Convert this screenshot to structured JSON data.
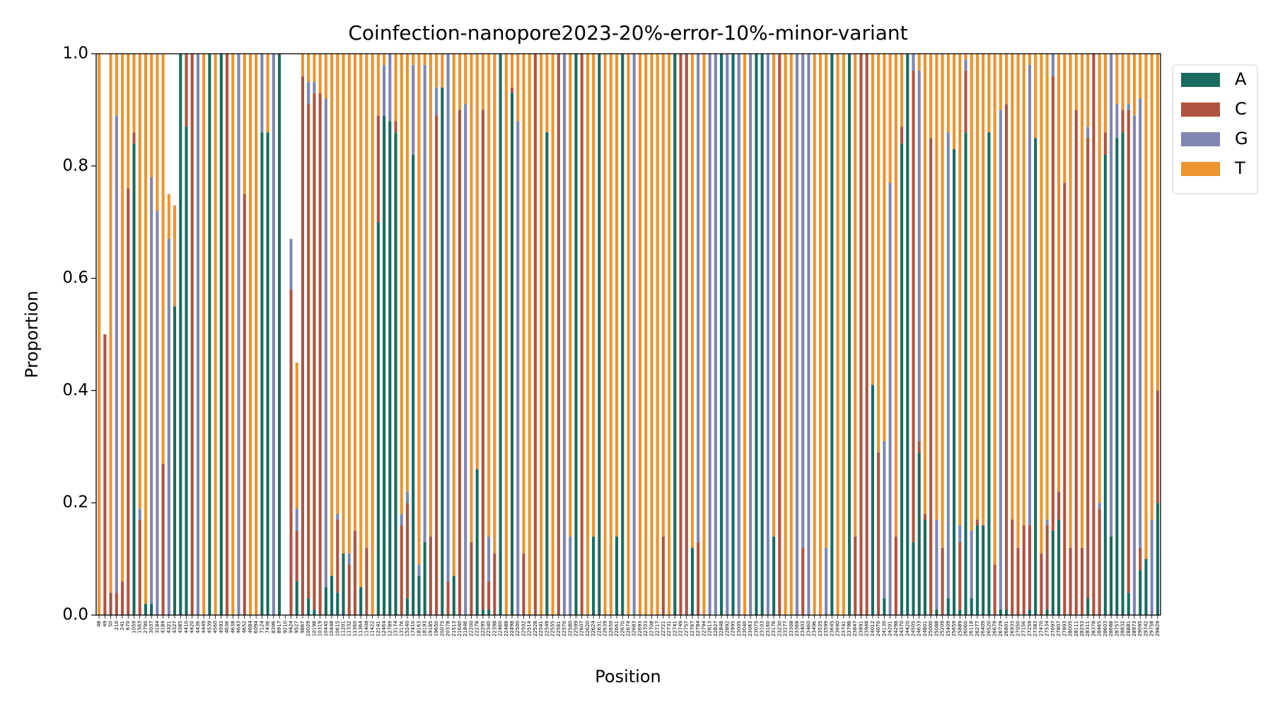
{
  "chart_data": {
    "type": "stacked_bar",
    "title": "Coinfection-nanopore2023-20%-error-10%-minor-variant",
    "x_label": "Position",
    "y_label": "Proportion",
    "ylim": [
      0,
      1
    ],
    "yticks": [
      {
        "value": 0,
        "label": "0.0"
      },
      {
        "value": 0.2,
        "label": "0.2"
      },
      {
        "value": 0.4,
        "label": "0.4"
      },
      {
        "value": 0.6,
        "label": "0.6"
      },
      {
        "value": 0.8,
        "label": "0.8"
      },
      {
        "value": 1,
        "label": "1.0"
      }
    ],
    "legend": "upper right outside",
    "categories": [
      48,
      49,
      50,
      210,
      241,
      670,
      1059,
      1563,
      2790,
      3037,
      3184,
      4184,
      4321,
      4327,
      4385,
      4410,
      4420,
      4436,
      4449,
      4539,
      4560,
      4593,
      4636,
      4638,
      4643,
      4652,
      4684,
      6094,
      7124,
      7436,
      8396,
      8917,
      9210,
      9424,
      9527,
      9867,
      10029,
      10198,
      10319,
      10445,
      10448,
      10615,
      11201,
      11332,
      11360,
      11364,
      11408,
      11422,
      12141,
      12464,
      12789,
      13174,
      13176,
      15240,
      17410,
      18163,
      18193,
      19185,
      19650,
      20075,
      20378,
      21513,
      21640,
      21846,
      22200,
      22278,
      22295,
      22340,
      22398,
      22460,
      22488,
      22498,
      22500,
      22502,
      22514,
      22528,
      22541,
      22549,
      22555,
      22561,
      22570,
      22580,
      22599,
      22607,
      22620,
      22624,
      22631,
      22639,
      22650,
      22661,
      22670,
      22674,
      22683,
      22693,
      22703,
      22708,
      22717,
      22721,
      22731,
      22741,
      22749,
      22757,
      22767,
      22784,
      22794,
      22813,
      22827,
      22848,
      22892,
      22995,
      23005,
      23040,
      23063,
      23075,
      23103,
      23160,
      23176,
      23230,
      23277,
      23308,
      23368,
      23403,
      23460,
      23496,
      23535,
      23599,
      23645,
      23690,
      23741,
      23798,
      23847,
      23891,
      23948,
      24012,
      24070,
      24130,
      24201,
      24298,
      24370,
      24420,
      24505,
      24633,
      24801,
      25000,
      25088,
      25209,
      25409,
      25659,
      25889,
      26060,
      26118,
      26277,
      26409,
      26520,
      26679,
      26729,
      26801,
      26933,
      27050,
      27156,
      27259,
      27383,
      27470,
      27534,
      27697,
      27807,
      27893,
      28005,
      28111,
      28253,
      28311,
      28378,
      28465,
      28603,
      28688,
      28757,
      28832,
      28881,
      28973,
      29095,
      29742,
      29758,
      29829
    ],
    "series": [
      {
        "name": "A",
        "color": "#1a6b5f",
        "values": [
          0,
          0,
          0,
          0,
          0,
          0,
          0.84,
          0,
          0.02,
          0.02,
          0,
          0,
          0,
          0.55,
          1,
          0.87,
          0,
          0,
          0,
          1,
          0,
          1,
          0,
          0,
          0,
          0,
          0,
          0,
          0.86,
          0.86,
          0,
          1,
          0,
          0,
          0.06,
          0,
          0.03,
          0.01,
          0,
          0.05,
          0.07,
          0.04,
          0.11,
          0,
          0,
          0.05,
          0,
          0,
          0.7,
          0.89,
          0.88,
          0.86,
          0,
          0.03,
          0.82,
          0.07,
          0.13,
          0,
          0,
          0.94,
          0,
          0.07,
          0,
          0,
          0,
          0.26,
          0.01,
          0.01,
          0,
          1,
          0,
          0.93,
          0,
          0,
          0,
          0,
          0,
          0.86,
          0,
          0,
          0,
          0,
          1,
          0,
          0,
          0.14,
          1,
          0,
          0,
          0.14,
          1,
          0,
          0,
          0,
          0,
          0,
          0,
          0,
          0,
          1,
          0,
          0,
          0.12,
          0,
          0,
          0,
          0,
          1,
          0,
          1,
          0,
          0,
          0,
          1,
          1,
          0,
          0.14,
          0,
          0,
          0,
          0,
          0,
          0,
          0,
          0,
          0,
          1,
          0,
          0,
          1,
          0,
          0,
          0,
          0.41,
          0,
          0.03,
          0,
          0,
          0.84,
          1,
          0.13,
          0.29,
          0.17,
          0,
          0.01,
          0,
          0.03,
          0.83,
          0.01,
          0.86,
          0.03,
          0.16,
          0.16,
          0.86,
          0,
          0.01,
          0.01,
          0,
          0,
          0,
          0.01,
          0.85,
          0,
          0.01,
          0.15,
          0.17,
          0,
          0,
          0,
          0,
          0.03,
          0,
          0,
          0.82,
          0.14,
          0.85,
          0.86,
          0.04,
          0,
          0.08,
          0.1,
          0,
          0.2
        ]
      },
      {
        "name": "C",
        "color": "#b05340",
        "values": [
          0,
          0.5,
          0.04,
          0.04,
          0.06,
          0.76,
          0.02,
          0.17,
          0,
          0,
          0,
          0.27,
          0,
          0,
          0,
          0.13,
          1,
          0,
          0,
          0,
          0,
          0,
          1,
          0,
          0,
          0.75,
          0,
          0,
          0,
          0,
          0,
          0,
          0,
          0.58,
          0.09,
          0.96,
          0.88,
          0.92,
          0.93,
          0,
          0,
          0.13,
          0,
          0.09,
          0.15,
          0,
          0.12,
          0,
          0.19,
          0,
          0,
          0.02,
          0.16,
          0.17,
          0,
          0,
          0,
          0.14,
          0.89,
          0,
          0.06,
          0,
          0.9,
          0,
          0.13,
          0,
          0.89,
          0.05,
          0.11,
          0,
          0,
          0.01,
          0,
          0.11,
          0,
          1,
          0,
          0,
          0,
          1,
          0,
          0,
          0,
          1,
          0,
          0,
          0,
          0,
          0,
          0,
          0,
          0,
          0,
          0,
          0,
          0,
          0,
          0.14,
          0,
          0,
          1,
          1,
          0,
          0.13,
          0,
          0,
          0,
          0,
          0,
          0,
          0,
          0,
          0,
          0,
          0,
          0,
          0,
          1,
          0,
          0,
          0,
          0.12,
          0,
          0,
          0,
          0,
          0,
          0,
          0,
          0,
          0.14,
          1,
          1,
          0,
          0.29,
          0,
          0,
          0.14,
          0.03,
          0,
          0.84,
          0.02,
          0.01,
          0.85,
          0,
          0.12,
          0,
          0,
          0.12,
          0.11,
          0,
          0.01,
          0,
          0,
          0.09,
          0,
          0.9,
          0.17,
          0.12,
          0.16,
          0.15,
          0,
          0.11,
          0.15,
          0.81,
          0.05,
          0.77,
          0.12,
          0.9,
          0.12,
          0.82,
          1,
          0.19,
          0.04,
          0,
          0,
          0.04,
          0.86,
          0,
          0.04,
          0,
          0,
          0.2
        ]
      },
      {
        "name": "G",
        "color": "#7e86b1",
        "values": [
          0,
          0,
          0,
          0.85,
          0,
          0,
          0,
          0.02,
          0,
          0.76,
          0.72,
          0,
          0.67,
          0,
          0,
          0,
          0,
          1,
          0,
          0,
          0,
          0,
          0,
          0,
          1,
          0,
          0,
          0,
          0.14,
          0,
          1,
          0,
          0,
          0.09,
          0.04,
          0,
          0.04,
          0.02,
          0,
          0.87,
          0,
          0.01,
          0,
          0.02,
          0,
          0,
          0,
          0,
          0,
          0.09,
          0.12,
          0,
          0.02,
          0.02,
          0.16,
          0.02,
          0.85,
          0,
          0.05,
          0,
          0.94,
          0,
          0,
          0.91,
          0,
          0,
          0,
          0.08,
          0,
          0,
          0,
          0,
          0.88,
          0,
          0,
          0,
          0,
          0,
          0,
          0,
          1,
          0.14,
          0,
          0,
          0,
          0,
          0,
          0,
          0,
          0,
          0,
          0,
          1,
          0,
          0,
          0,
          0,
          0,
          0,
          0,
          0,
          0,
          0,
          0.87,
          0,
          1,
          1,
          0,
          1,
          0,
          1,
          0,
          1,
          0,
          0,
          1,
          0,
          0,
          0,
          0,
          1,
          0.88,
          1,
          0,
          0,
          0.12,
          0,
          0,
          0,
          0,
          0,
          0,
          0,
          0,
          0,
          0.28,
          0.77,
          0,
          0,
          0,
          0.03,
          0.66,
          0,
          0,
          0.16,
          0,
          0.83,
          0,
          0.03,
          0.02,
          0.12,
          0,
          0,
          0,
          0,
          0.89,
          0,
          0,
          0,
          0,
          0.82,
          0,
          0,
          0.01,
          0.04,
          0,
          0,
          0,
          0,
          0,
          0.02,
          0,
          0.01,
          0,
          0.86,
          0.06,
          0,
          0.01,
          0.89,
          0.8,
          0,
          0.17,
          0
        ]
      },
      {
        "name": "T",
        "color": "#ec9430",
        "values": [
          1,
          0,
          0.96,
          0.11,
          0.94,
          0.24,
          0.14,
          0.81,
          0.98,
          0.22,
          0.28,
          0.73,
          0.08,
          0.18,
          0,
          0,
          0,
          0,
          1,
          0,
          1,
          0,
          0,
          1,
          0,
          0.25,
          1,
          1,
          0,
          0.14,
          0,
          0,
          0,
          0,
          0.26,
          0.04,
          0.05,
          0.05,
          0.07,
          0.08,
          0.93,
          0.82,
          0.89,
          0.89,
          0.85,
          0.95,
          0.88,
          1,
          0.11,
          0.02,
          0,
          0.12,
          0.82,
          0.78,
          0.02,
          0.91,
          0.02,
          0.86,
          0.06,
          0.06,
          0,
          0.93,
          0.1,
          0.09,
          0.87,
          0.74,
          0.1,
          0.86,
          0.89,
          0,
          1,
          0.06,
          0.12,
          0.89,
          1,
          0,
          1,
          0.14,
          1,
          0,
          0,
          0.86,
          0,
          0,
          1,
          0.86,
          0,
          1,
          1,
          0.86,
          0,
          1,
          0,
          1,
          1,
          1,
          1,
          0.86,
          1,
          0,
          0,
          0,
          0.88,
          0,
          1,
          0,
          0,
          0,
          0,
          0,
          0,
          1,
          0,
          0,
          0,
          0,
          0.86,
          0,
          1,
          1,
          0,
          0,
          0,
          1,
          1,
          0.88,
          0,
          1,
          1,
          0,
          0.86,
          0,
          0,
          0.59,
          0.71,
          0.69,
          0.23,
          0.86,
          0.13,
          0,
          0,
          0.03,
          0.82,
          0.15,
          0.83,
          0.88,
          0.14,
          0.17,
          0.84,
          0.01,
          0.85,
          0.83,
          0.84,
          0.14,
          0.91,
          0.1,
          0.09,
          0.83,
          0.88,
          0.84,
          0.02,
          0.15,
          0.89,
          0.83,
          0,
          0.78,
          0.23,
          0.88,
          0.1,
          0.88,
          0.13,
          0,
          0.8,
          0.14,
          0,
          0.09,
          0.1,
          0.09,
          0.11,
          0.08,
          0.9,
          0.83,
          0.6
        ]
      }
    ]
  }
}
